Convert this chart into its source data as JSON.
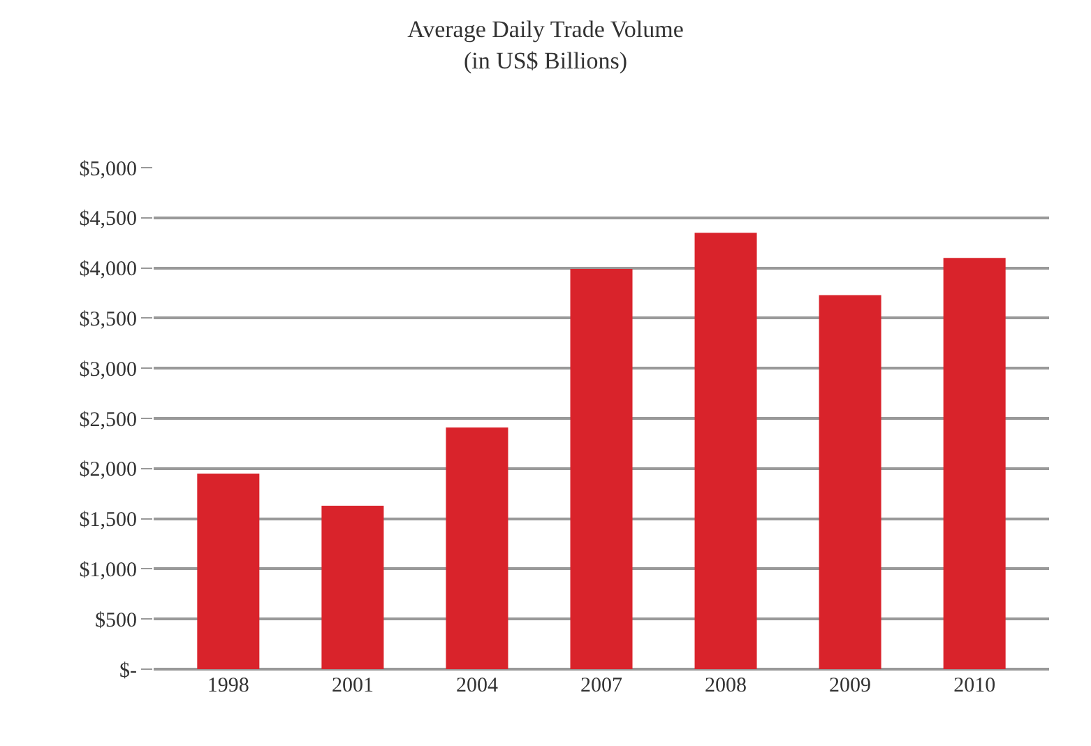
{
  "chart_data": {
    "type": "bar",
    "title": "Average Daily Trade Volume",
    "subtitle": "(in US$ Billions)",
    "categories": [
      "1998",
      "2001",
      "2004",
      "2007",
      "2008",
      "2009",
      "2010"
    ],
    "values": [
      1950,
      1630,
      2410,
      3990,
      4350,
      3730,
      4100
    ],
    "color": "#d9232b",
    "ylim": [
      0,
      5000
    ],
    "yticks": [
      {
        "value": 0,
        "label": "$-"
      },
      {
        "value": 500,
        "label": "$500"
      },
      {
        "value": 1000,
        "label": "$1,000"
      },
      {
        "value": 1500,
        "label": "$1,500"
      },
      {
        "value": 2000,
        "label": "$2,000"
      },
      {
        "value": 2500,
        "label": "$2,500"
      },
      {
        "value": 3000,
        "label": "$3,000"
      },
      {
        "value": 3500,
        "label": "$3,500"
      },
      {
        "value": 4000,
        "label": "$4,000"
      },
      {
        "value": 4500,
        "label": "$4,500"
      },
      {
        "value": 5000,
        "label": "$5,000"
      }
    ],
    "grid": "y",
    "legend": false
  }
}
